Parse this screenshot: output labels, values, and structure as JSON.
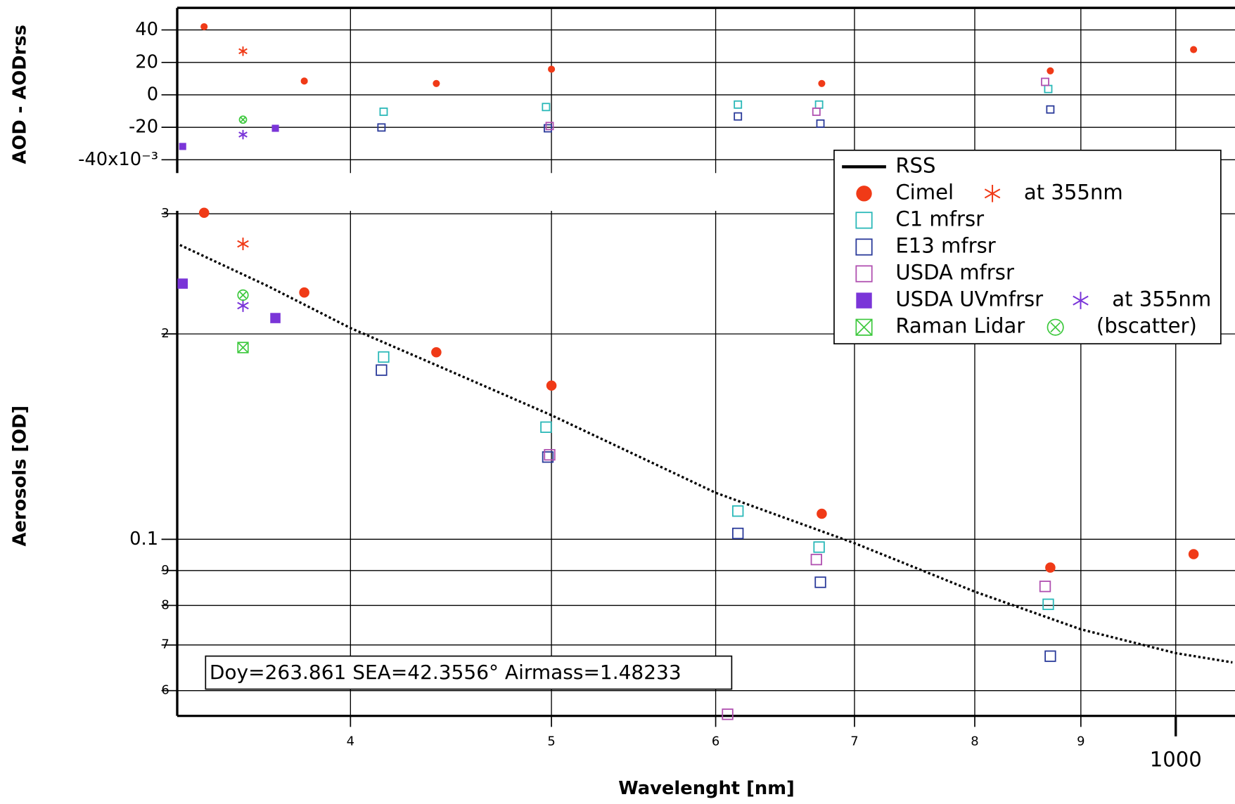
{
  "chart_data": [
    {
      "type": "scatter",
      "y_label": "AOD - AODrss",
      "xlim": [
        330,
        1068
      ],
      "ylim": [
        -48.2,
        53.6
      ],
      "yticks": [
        40,
        20,
        0,
        -20,
        {
          "value": -40,
          "label": "-40x10⁻³"
        }
      ],
      "grid": true,
      "series": [
        {
          "color": "#f03a17",
          "marker": "circle",
          "x": [
            340,
            380,
            440,
            500,
            675,
            870,
            1020
          ],
          "values": [
            42,
            8.5,
            7,
            15.8,
            7,
            14.8,
            27.9
          ]
        },
        {
          "color": "#f03a17",
          "marker": "star",
          "x": [
            355
          ],
          "values": [
            26.9
          ]
        },
        {
          "color": "#2ab8b8",
          "marker": "square",
          "x": [
            415,
            497,
            615,
            673,
            868
          ],
          "values": [
            -10.4,
            -7.5,
            -6,
            -6,
            3.6
          ]
        },
        {
          "color": "#2a3a9a",
          "marker": "square",
          "x": [
            414,
            498,
            615,
            674,
            870
          ],
          "values": [
            -20.1,
            -20.6,
            -13.3,
            -17.7,
            -9
          ]
        },
        {
          "color": "#b050b0",
          "marker": "square",
          "x": [
            499,
            671,
            865
          ],
          "values": [
            -19.2,
            -10.4,
            8
          ]
        },
        {
          "color": "#7a35d8",
          "marker": "filled-square",
          "x": [
            332,
            368
          ],
          "values": [
            -31.8,
            -20.6
          ]
        },
        {
          "color": "#7a35d8",
          "marker": "star",
          "x": [
            355
          ],
          "values": [
            -24.5
          ]
        },
        {
          "color": "#3cc83c",
          "marker": "circle-x",
          "x": [
            355
          ],
          "values": [
            -15.3
          ]
        }
      ]
    },
    {
      "type": "scatter",
      "x_label": "Wavelenght  [nm]",
      "y_label": "Aerosols [OD]",
      "log_x": true,
      "log_y": true,
      "xlim": [
        330,
        1068
      ],
      "ylim": [
        0.0551,
        0.303
      ],
      "xticks": [
        {
          "value": 400,
          "label": "4"
        },
        {
          "value": 500,
          "label": "5"
        },
        {
          "value": 600,
          "label": "6"
        },
        {
          "value": 700,
          "label": "7"
        },
        {
          "value": 800,
          "label": "8"
        },
        {
          "value": 900,
          "label": "9"
        },
        1000
      ],
      "yticks": [
        {
          "value": 0.3,
          "label": "3"
        },
        {
          "value": 0.2,
          "label": "2"
        },
        0.1,
        {
          "value": 0.09,
          "label": "9"
        },
        {
          "value": 0.08,
          "label": "8"
        },
        {
          "value": 0.07,
          "label": "7"
        },
        {
          "value": 0.06,
          "label": "6"
        }
      ],
      "grid": true,
      "annotation": "Doy=263.861 SEA=42.3556°  Airmass=1.48233",
      "series": [
        {
          "name": "RSS",
          "color": "#000000",
          "marker": "line",
          "x": [
            331,
            365,
            400,
            440,
            500,
            600,
            700,
            800,
            900,
            1000,
            1065
          ],
          "values": [
            0.27,
            0.235,
            0.204,
            0.18,
            0.152,
            0.117,
            0.0987,
            0.0838,
            0.0738,
            0.0681,
            0.066
          ]
        },
        {
          "name": "Cimel",
          "color": "#f03a17",
          "marker": "circle",
          "x": [
            340,
            380,
            440,
            500,
            675,
            870,
            1020
          ],
          "values": [
            0.301,
            0.23,
            0.188,
            0.168,
            0.109,
            0.0909,
            0.0951
          ]
        },
        {
          "name": "at 355nm",
          "color": "#f03a17",
          "marker": "star",
          "x": [
            355
          ],
          "values": [
            0.271
          ]
        },
        {
          "name": "C1 mfrsr",
          "color": "#2ab8b8",
          "marker": "square",
          "x": [
            415,
            497,
            615,
            673,
            868
          ],
          "values": [
            0.185,
            0.146,
            0.11,
            0.0974,
            0.0803
          ]
        },
        {
          "name": "E13 mfrsr",
          "color": "#2a3a9a",
          "marker": "square",
          "x": [
            414,
            498,
            615,
            674,
            870
          ],
          "values": [
            0.177,
            0.132,
            0.102,
            0.0865,
            0.0674
          ]
        },
        {
          "name": "USDA mfrsr",
          "color": "#b050b0",
          "marker": "square",
          "x": [
            499,
            608,
            671,
            865
          ],
          "values": [
            0.133,
            0.0554,
            0.0934,
            0.0853
          ]
        },
        {
          "name": "USDA UVmfrsr",
          "color": "#7a35d8",
          "marker": "filled-square",
          "x": [
            332,
            368
          ],
          "values": [
            0.237,
            0.211
          ]
        },
        {
          "name": "at 355nm",
          "color": "#7a35d8",
          "marker": "star",
          "x": [
            355
          ],
          "values": [
            0.22
          ]
        },
        {
          "name": "Raman Lidar",
          "color": "#3cc83c",
          "marker": "box-x",
          "x": [
            355
          ],
          "values": [
            0.191
          ]
        },
        {
          "name": "(bscatter)",
          "color": "#3cc83c",
          "marker": "circle-x",
          "x": [
            355
          ],
          "values": [
            0.228
          ]
        }
      ]
    }
  ]
}
